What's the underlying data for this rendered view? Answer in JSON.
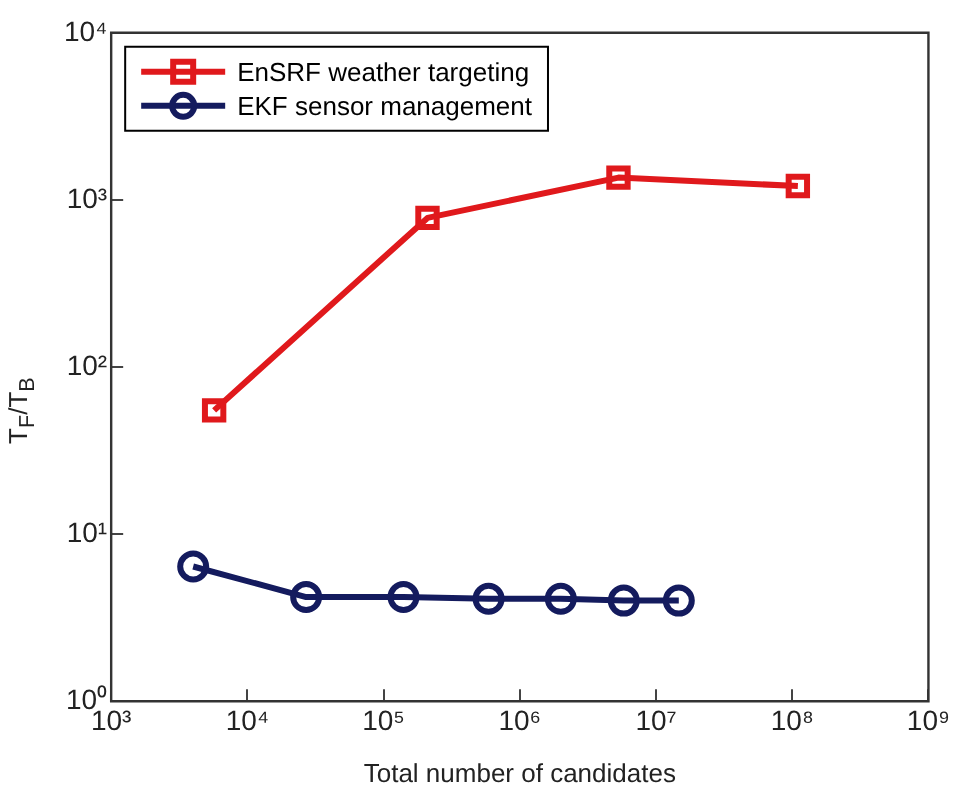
{
  "chart_data": {
    "type": "line",
    "xlabel": "Total number of candidates",
    "ylabel": "T$_{F}$/T$_{B}$",
    "log": "xy",
    "grid": false,
    "legend": "top left",
    "xlim": [
      1000,
      1000000000
    ],
    "xticks": [
      {
        "value": 1000,
        "label": "10³"
      },
      {
        "value": 10000,
        "label": "10⁴"
      },
      {
        "value": 100000,
        "label": "10⁵"
      },
      {
        "value": 1000000,
        "label": "10⁶"
      },
      {
        "value": 10000000,
        "label": "10⁷"
      },
      {
        "value": 100000000,
        "label": "10⁸"
      },
      {
        "value": 1000000000,
        "label": "10⁹"
      }
    ],
    "ylim": [
      1,
      10000
    ],
    "yticks": [
      {
        "value": 1,
        "label": "10⁰"
      },
      {
        "value": 10,
        "label": "10¹"
      },
      {
        "value": 100,
        "label": "10²"
      },
      {
        "value": 1000,
        "label": "10³"
      },
      {
        "value": 10000,
        "label": "10⁴"
      }
    ],
    "series": [
      {
        "name": "EnSRF weather targeting",
        "color": "#e0191c",
        "marker": "square",
        "x": [
          5700,
          210000,
          5300000,
          110000000
        ],
        "values": [
          55,
          780,
          1360,
          1210
        ]
      },
      {
        "name": "EKF sensor management",
        "color": "#141b5e",
        "marker": "circle",
        "x": [
          4000,
          27000,
          140000,
          590000,
          2000000,
          5800000,
          14700000
        ],
        "values": [
          6.4,
          4.2,
          4.2,
          4.1,
          4.1,
          4.0,
          4.0
        ]
      }
    ]
  }
}
